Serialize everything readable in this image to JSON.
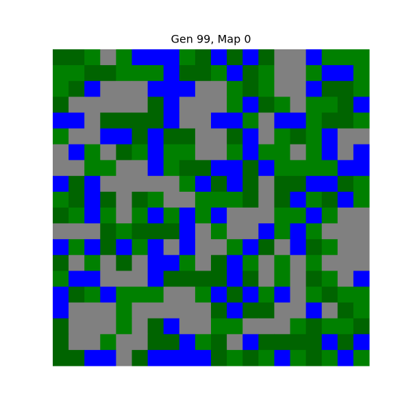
{
  "title": "Gen 99, Map 0",
  "palette": {
    "D": "#006400",
    "G": "#008000",
    "B": "#0000ff",
    "Y": "#808080"
  },
  "rows": [
    [
      "D",
      "D",
      "G",
      "Y",
      "G",
      "B",
      "B",
      "B",
      "G",
      "D",
      "B",
      "D",
      "B",
      "D",
      "Y",
      "Y",
      "B",
      "G",
      "G",
      "G"
    ],
    [
      "G",
      "G",
      "D",
      "D",
      "G",
      "G",
      "G",
      "B",
      "D",
      "D",
      "G",
      "B",
      "D",
      "G",
      "Y",
      "Y",
      "G",
      "B",
      "B",
      "G"
    ],
    [
      "G",
      "D",
      "B",
      "Y",
      "Y",
      "Y",
      "B",
      "B",
      "B",
      "Y",
      "Y",
      "G",
      "D",
      "G",
      "Y",
      "Y",
      "B",
      "D",
      "D",
      "G"
    ],
    [
      "D",
      "Y",
      "Y",
      "Y",
      "Y",
      "Y",
      "D",
      "B",
      "Y",
      "Y",
      "Y",
      "G",
      "B",
      "D",
      "G",
      "Y",
      "G",
      "G",
      "D",
      "B"
    ],
    [
      "B",
      "B",
      "Y",
      "D",
      "D",
      "D",
      "D",
      "B",
      "Y",
      "Y",
      "B",
      "B",
      "G",
      "Y",
      "B",
      "B",
      "G",
      "D",
      "D",
      "G"
    ],
    [
      "G",
      "Y",
      "Y",
      "B",
      "B",
      "D",
      "B",
      "D",
      "D",
      "Y",
      "Y",
      "D",
      "B",
      "Y",
      "G",
      "D",
      "G",
      "B",
      "Y",
      "Y"
    ],
    [
      "Y",
      "B",
      "G",
      "Y",
      "D",
      "G",
      "B",
      "G",
      "G",
      "Y",
      "Y",
      "G",
      "B",
      "G",
      "G",
      "Y",
      "G",
      "B",
      "Y",
      "B"
    ],
    [
      "Y",
      "Y",
      "G",
      "G",
      "Y",
      "Y",
      "B",
      "G",
      "D",
      "D",
      "B",
      "B",
      "D",
      "B",
      "G",
      "G",
      "G",
      "G",
      "B",
      "B"
    ],
    [
      "B",
      "D",
      "B",
      "Y",
      "Y",
      "Y",
      "Y",
      "Y",
      "G",
      "B",
      "D",
      "B",
      "D",
      "Y",
      "D",
      "D",
      "B",
      "B",
      "D",
      "G"
    ],
    [
      "G",
      "D",
      "B",
      "D",
      "Y",
      "D",
      "G",
      "Y",
      "Y",
      "G",
      "G",
      "G",
      "D",
      "Y",
      "D",
      "B",
      "G",
      "D",
      "B",
      "G"
    ],
    [
      "D",
      "G",
      "B",
      "G",
      "Y",
      "G",
      "B",
      "G",
      "B",
      "G",
      "B",
      "Y",
      "Y",
      "Y",
      "G",
      "G",
      "B",
      "G",
      "Y",
      "Y"
    ],
    [
      "Y",
      "Y",
      "Y",
      "D",
      "G",
      "D",
      "D",
      "D",
      "B",
      "Y",
      "G",
      "Y",
      "Y",
      "B",
      "G",
      "B",
      "G",
      "Y",
      "Y",
      "Y"
    ],
    [
      "B",
      "G",
      "B",
      "D",
      "B",
      "G",
      "B",
      "Y",
      "B",
      "Y",
      "Y",
      "G",
      "B",
      "D",
      "Y",
      "B",
      "D",
      "G",
      "Y",
      "Y"
    ],
    [
      "D",
      "Y",
      "G",
      "Y",
      "D",
      "Y",
      "B",
      "B",
      "G",
      "Y",
      "D",
      "B",
      "G",
      "Y",
      "G",
      "Y",
      "G",
      "Y",
      "Y",
      "Y"
    ],
    [
      "G",
      "B",
      "B",
      "Y",
      "Y",
      "Y",
      "B",
      "D",
      "D",
      "D",
      "D",
      "B",
      "D",
      "Y",
      "G",
      "Y",
      "D",
      "G",
      "Y",
      "B"
    ],
    [
      "B",
      "D",
      "G",
      "B",
      "G",
      "G",
      "G",
      "Y",
      "Y",
      "G",
      "B",
      "D",
      "B",
      "G",
      "B",
      "Y",
      "G",
      "D",
      "G",
      "G"
    ],
    [
      "B",
      "Y",
      "Y",
      "Y",
      "G",
      "Y",
      "Y",
      "Y",
      "Y",
      "Y",
      "D",
      "B",
      "D",
      "D",
      "Y",
      "Y",
      "B",
      "Y",
      "D",
      "G"
    ],
    [
      "D",
      "Y",
      "Y",
      "Y",
      "G",
      "Y",
      "D",
      "B",
      "Y",
      "Y",
      "G",
      "G",
      "Y",
      "Y",
      "Y",
      "G",
      "D",
      "G",
      "G",
      "D"
    ],
    [
      "D",
      "Y",
      "Y",
      "G",
      "Y",
      "Y",
      "D",
      "D",
      "B",
      "G",
      "D",
      "Y",
      "B",
      "D",
      "D",
      "D",
      "D",
      "B",
      "D",
      "B"
    ],
    [
      "D",
      "D",
      "B",
      "B",
      "Y",
      "D",
      "B",
      "B",
      "B",
      "B",
      "D",
      "G",
      "D",
      "G",
      "B",
      "G",
      "D",
      "G",
      "B",
      "G"
    ]
  ]
}
